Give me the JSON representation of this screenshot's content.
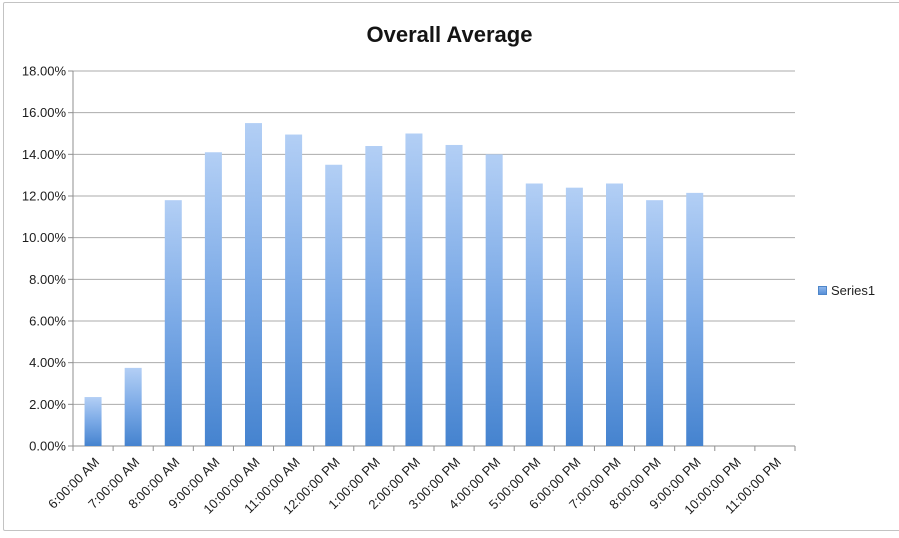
{
  "chart_data": {
    "type": "bar",
    "title": "Overall Average",
    "categories": [
      "6:00:00 AM",
      "7:00:00 AM",
      "8:00:00 AM",
      "9:00:00 AM",
      "10:00:00 AM",
      "11:00:00 AM",
      "12:00:00 PM",
      "1:00:00 PM",
      "2:00:00 PM",
      "3:00:00 PM",
      "4:00:00 PM",
      "5:00:00 PM",
      "6:00:00 PM",
      "7:00:00 PM",
      "8:00:00 PM",
      "9:00:00 PM",
      "10:00:00 PM",
      "11:00:00 PM"
    ],
    "series": [
      {
        "name": "Series1",
        "values": [
          2.35,
          3.75,
          11.8,
          14.1,
          15.5,
          14.95,
          13.5,
          14.4,
          15.0,
          14.45,
          14.0,
          12.6,
          12.4,
          12.6,
          11.8,
          12.15,
          0,
          0
        ]
      }
    ],
    "xlabel": "",
    "ylabel": "",
    "ylim": [
      0,
      18
    ],
    "ytick_step": 2,
    "ytick_labels": [
      "0.00%",
      "2.00%",
      "4.00%",
      "6.00%",
      "8.00%",
      "10.00%",
      "12.00%",
      "14.00%",
      "16.00%",
      "18.00%"
    ],
    "value_unit": "percent",
    "grid": true,
    "legend_position": "right",
    "legend_entries": [
      "Series1"
    ],
    "colors": {
      "bar_gradient_top": "#b3cff5",
      "bar_gradient_mid": "#7aa9e6",
      "bar_gradient_bottom": "#4583cf",
      "gridline": "#ababab",
      "axis_line": "#8f8f8f",
      "label_text": "#1c1c1c",
      "title_text": "#141414",
      "legend_marker_fill": "#6fa3e3",
      "legend_marker_border": "#4e86c9",
      "frame_border": "#c3c3c3",
      "background": "#ffffff"
    }
  }
}
